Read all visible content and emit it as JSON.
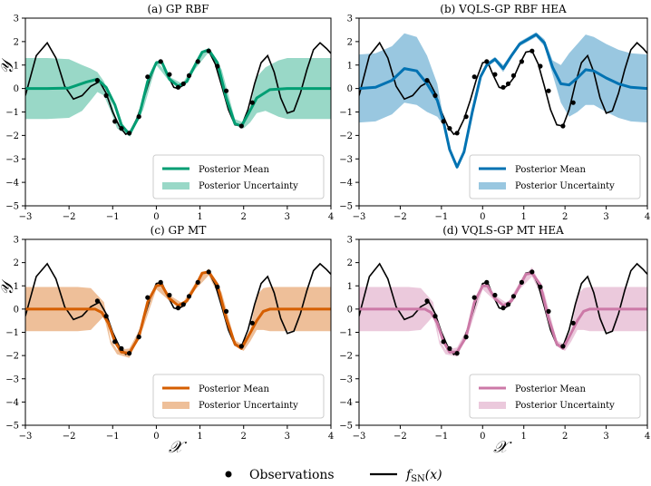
{
  "colors": {
    "gp_rbf": "#009e73",
    "vqls_rbf": "#0072b2",
    "gp_mt": "#d55e00",
    "vqls_mt": "#cc79a7",
    "truth": "#000000"
  },
  "legend": {
    "observations": "Observations",
    "truth": "f",
    "truth_sub": "SN",
    "truth_arg": "(x)"
  },
  "chart_data": [
    {
      "type": "line",
      "title": "(a) GP RBF",
      "color_key": "gp_rbf",
      "xlabel": "",
      "ylabel": "𝒴",
      "xlim": [
        -3,
        4
      ],
      "ylim": [
        -5,
        3
      ],
      "xticks": [
        "−3",
        "−2",
        "−1",
        "0",
        "1",
        "2",
        "3",
        "4"
      ],
      "yticks": [
        "3",
        "2",
        "1",
        "0",
        "−1",
        "−2",
        "−3",
        "−4",
        "−5"
      ],
      "legend": [
        "Posterior Mean",
        "Posterior Uncertainty"
      ],
      "series": [
        {
          "name": "Posterior Mean",
          "x": [
            -3,
            -2.5,
            -2,
            -1.6,
            -1.35,
            -1.15,
            -0.95,
            -0.8,
            -0.62,
            -0.4,
            -0.2,
            0,
            0.12,
            0.3,
            0.5,
            0.7,
            0.9,
            1.05,
            1.2,
            1.4,
            1.6,
            1.8,
            1.95,
            2.1,
            2.3,
            2.6,
            3,
            3.5,
            4
          ],
          "y": [
            0,
            0,
            0.02,
            0.28,
            0.4,
            0.05,
            -0.7,
            -1.55,
            -1.95,
            -1.2,
            0.3,
            1.1,
            1.15,
            0.4,
            0.1,
            0.3,
            1.05,
            1.55,
            1.65,
            1.1,
            -0.4,
            -1.5,
            -1.6,
            -1.1,
            -0.4,
            -0.05,
            0,
            0,
            0
          ]
        },
        {
          "name": "Posterior Uncertainty",
          "x": [
            -3,
            -2.5,
            -2,
            -1.7,
            -1.5,
            -1.35,
            -1.2,
            -1.05,
            -0.9,
            -0.6,
            -0.3,
            0,
            0.3,
            0.6,
            0.9,
            1.2,
            1.5,
            1.8,
            2.0,
            2.15,
            2.3,
            2.5,
            2.8,
            3,
            3.5,
            4
          ],
          "lower": [
            -1.3,
            -1.3,
            -1.25,
            -0.95,
            -0.5,
            -0.15,
            -0.3,
            -0.95,
            -1.7,
            -2.05,
            -0.9,
            1.0,
            0.3,
            0.05,
            0.85,
            1.55,
            0.5,
            -1.55,
            -1.7,
            -1.45,
            -1.05,
            -0.95,
            -1.2,
            -1.3,
            -1.3,
            -1.3
          ],
          "upper": [
            1.3,
            1.3,
            1.25,
            1.0,
            0.85,
            0.7,
            0.3,
            -0.45,
            -1.4,
            -1.85,
            -0.55,
            1.2,
            0.5,
            0.2,
            1.15,
            1.75,
            0.8,
            -1.3,
            -1.45,
            -0.8,
            0.5,
            0.9,
            1.2,
            1.3,
            1.3,
            1.3
          ]
        }
      ]
    },
    {
      "type": "line",
      "title": "(b) VQLS-GP RBF HEA",
      "color_key": "vqls_rbf",
      "xlabel": "",
      "ylabel": "",
      "xlim": [
        -3,
        4
      ],
      "ylim": [
        -5,
        3
      ],
      "xticks": [
        "−3",
        "−2",
        "−1",
        "0",
        "1",
        "2",
        "3",
        "4"
      ],
      "yticks": [
        "3",
        "2",
        "1",
        "0",
        "−1",
        "−2",
        "−3",
        "−4",
        "−5"
      ],
      "legend": [
        "Posterior Mean",
        "Posterior Uncertainty"
      ],
      "series": [
        {
          "name": "Posterior Mean",
          "x": [
            -3,
            -2.6,
            -2.2,
            -1.9,
            -1.6,
            -1.35,
            -1.1,
            -0.95,
            -0.8,
            -0.62,
            -0.45,
            -0.25,
            -0.05,
            0.1,
            0.3,
            0.5,
            0.7,
            0.9,
            1.1,
            1.3,
            1.5,
            1.7,
            1.9,
            2.1,
            2.3,
            2.5,
            2.7,
            3,
            3.3,
            3.6,
            4
          ],
          "y": [
            0,
            0.05,
            0.35,
            0.85,
            0.75,
            0.2,
            -0.5,
            -1.4,
            -2.6,
            -3.35,
            -2.7,
            -1.0,
            0.5,
            1.0,
            1.25,
            0.85,
            1.4,
            1.9,
            2.1,
            2.3,
            1.95,
            0.9,
            0.2,
            0.15,
            0.45,
            0.8,
            0.75,
            0.45,
            0.2,
            0.05,
            0
          ]
        },
        {
          "name": "Posterior Uncertainty",
          "x": [
            -3,
            -2.6,
            -2.2,
            -1.9,
            -1.6,
            -1.35,
            -1.1,
            -0.95,
            -0.8,
            -0.62,
            -0.45,
            -0.25,
            -0.05,
            0.1,
            0.3,
            0.5,
            0.7,
            0.9,
            1.1,
            1.3,
            1.5,
            1.7,
            1.9,
            2.1,
            2.3,
            2.5,
            2.7,
            3,
            3.3,
            3.6,
            4
          ],
          "lower": [
            -1.45,
            -1.4,
            -1.1,
            -0.6,
            -0.7,
            -1.0,
            -1.2,
            -1.55,
            -2.7,
            -3.4,
            -2.8,
            -1.1,
            0.4,
            0.9,
            1.15,
            0.7,
            1.3,
            1.8,
            2.0,
            2.2,
            1.8,
            0.6,
            -0.6,
            -1.2,
            -1.0,
            -0.7,
            -0.7,
            -1.0,
            -1.25,
            -1.4,
            -1.45
          ],
          "upper": [
            1.45,
            1.5,
            1.8,
            2.35,
            2.2,
            1.4,
            0.2,
            -1.25,
            -2.5,
            -3.3,
            -2.6,
            -0.9,
            0.6,
            1.1,
            1.35,
            1.0,
            1.5,
            2.0,
            2.2,
            2.4,
            2.1,
            1.2,
            1.0,
            1.5,
            1.9,
            2.3,
            2.2,
            1.9,
            1.65,
            1.5,
            1.45
          ]
        }
      ]
    },
    {
      "type": "line",
      "title": "(c) GP MT",
      "color_key": "gp_mt",
      "xlabel": "𝒳",
      "ylabel": "𝒴",
      "xlim": [
        -3,
        4
      ],
      "ylim": [
        -5,
        3
      ],
      "xticks": [
        "−3",
        "−2",
        "−1",
        "0",
        "1",
        "2",
        "3",
        "4"
      ],
      "yticks": [
        "3",
        "2",
        "1",
        "0",
        "−1",
        "−2",
        "−3",
        "−4",
        "−5"
      ],
      "legend": [
        "Posterior Mean",
        "Posterior Uncertainty"
      ],
      "series": [
        {
          "name": "Posterior Mean",
          "x": [
            -3,
            -2.5,
            -1.8,
            -1.4,
            -1.25,
            -1.1,
            -0.95,
            -0.8,
            -0.62,
            -0.4,
            -0.2,
            0,
            0.12,
            0.3,
            0.5,
            0.7,
            0.9,
            1.05,
            1.2,
            1.4,
            1.6,
            1.8,
            1.95,
            2.1,
            2.3,
            2.45,
            2.6,
            3,
            3.5,
            4
          ],
          "y": [
            0,
            0,
            0,
            0,
            -0.15,
            -0.6,
            -1.4,
            -1.85,
            -1.9,
            -1.2,
            0.3,
            1.0,
            1.05,
            0.45,
            0.15,
            0.35,
            1.0,
            1.55,
            1.6,
            1.05,
            -0.4,
            -1.5,
            -1.7,
            -1.2,
            -0.5,
            -0.1,
            0,
            0,
            0,
            0
          ]
        },
        {
          "name": "Posterior Uncertainty",
          "x": [
            -3,
            -2.5,
            -1.8,
            -1.5,
            -1.35,
            -1.2,
            -1.05,
            -0.9,
            -0.62,
            -0.3,
            0,
            0.3,
            0.6,
            0.9,
            1.2,
            1.5,
            1.8,
            2.0,
            2.15,
            2.3,
            2.45,
            2.6,
            3,
            3.5,
            4
          ],
          "lower": [
            -0.95,
            -0.95,
            -0.95,
            -0.9,
            -0.6,
            -0.3,
            -1.5,
            -1.95,
            -2.1,
            -0.8,
            0.85,
            0.35,
            0.05,
            0.85,
            1.45,
            0.3,
            -1.6,
            -1.8,
            -1.4,
            -0.9,
            -0.9,
            -0.95,
            -0.95,
            -0.95,
            -0.95
          ],
          "upper": [
            0.95,
            0.95,
            0.95,
            0.9,
            0.6,
            0.3,
            -1.3,
            -1.75,
            -1.7,
            -0.6,
            1.15,
            0.6,
            0.25,
            1.15,
            1.75,
            0.7,
            -1.35,
            -1.55,
            -0.9,
            0.6,
            0.9,
            0.95,
            0.95,
            0.95,
            0.95
          ]
        }
      ]
    },
    {
      "type": "line",
      "title": "(d) VQLS-GP MT HEA",
      "color_key": "vqls_mt",
      "xlabel": "𝒳",
      "ylabel": "",
      "xlim": [
        -3,
        4
      ],
      "ylim": [
        -5,
        3
      ],
      "xticks": [
        "−3",
        "−2",
        "−1",
        "0",
        "1",
        "2",
        "3",
        "4"
      ],
      "yticks": [
        "3",
        "2",
        "1",
        "0",
        "−1",
        "−2",
        "−3",
        "−4",
        "−5"
      ],
      "legend": [
        "Posterior Mean",
        "Posterior Uncertainty"
      ],
      "series": [
        {
          "name": "Posterior Mean",
          "x": [
            -3,
            -2.5,
            -1.8,
            -1.4,
            -1.25,
            -1.1,
            -0.95,
            -0.8,
            -0.62,
            -0.4,
            -0.2,
            0,
            0.12,
            0.3,
            0.5,
            0.7,
            0.9,
            1.05,
            1.2,
            1.4,
            1.6,
            1.8,
            1.95,
            2.1,
            2.3,
            2.45,
            2.6,
            3,
            3.5,
            4
          ],
          "y": [
            0,
            0,
            0,
            0,
            -0.15,
            -0.6,
            -1.4,
            -1.85,
            -1.85,
            -1.2,
            0.3,
            1.0,
            1.0,
            0.45,
            0.15,
            0.35,
            1.0,
            1.5,
            1.55,
            1.05,
            -0.4,
            -1.5,
            -1.7,
            -1.2,
            -0.5,
            -0.1,
            0,
            0,
            0,
            0
          ]
        },
        {
          "name": "Posterior Uncertainty",
          "x": [
            -3,
            -2.5,
            -1.8,
            -1.5,
            -1.35,
            -1.2,
            -1.05,
            -0.9,
            -0.62,
            -0.3,
            0,
            0.3,
            0.6,
            0.9,
            1.2,
            1.5,
            1.8,
            2.0,
            2.15,
            2.3,
            2.45,
            2.6,
            3,
            3.5,
            4
          ],
          "lower": [
            -0.95,
            -0.95,
            -0.95,
            -0.9,
            -0.6,
            -0.3,
            -1.5,
            -1.95,
            -2.05,
            -0.8,
            0.85,
            0.35,
            0.05,
            0.85,
            1.4,
            0.3,
            -1.6,
            -1.8,
            -1.4,
            -0.9,
            -0.9,
            -0.95,
            -0.95,
            -0.95,
            -0.95
          ],
          "upper": [
            0.95,
            0.95,
            0.95,
            0.9,
            0.6,
            0.3,
            -1.3,
            -1.75,
            -1.65,
            -0.6,
            1.15,
            0.6,
            0.25,
            1.15,
            1.8,
            0.7,
            -1.35,
            -1.55,
            -0.9,
            0.6,
            0.9,
            0.95,
            0.95,
            0.95,
            0.95
          ]
        }
      ]
    }
  ],
  "truth_function": {
    "name": "f_SN(x)",
    "x": [
      -3,
      -2.75,
      -2.5,
      -2.3,
      -2.1,
      -1.9,
      -1.7,
      -1.5,
      -1.3,
      -1.15,
      -1.0,
      -0.85,
      -0.7,
      -0.6,
      -0.45,
      -0.3,
      -0.15,
      0,
      0.12,
      0.25,
      0.4,
      0.5,
      0.62,
      0.75,
      0.9,
      1.05,
      1.2,
      1.35,
      1.5,
      1.65,
      1.8,
      1.95,
      2.1,
      2.25,
      2.4,
      2.55,
      2.7,
      2.85,
      3.0,
      3.15,
      3.3,
      3.45,
      3.6,
      3.75,
      3.9,
      4
    ],
    "y": [
      -0.3,
      1.4,
      1.95,
      1.3,
      0.1,
      -0.45,
      -0.3,
      0.1,
      0.3,
      -0.2,
      -1.0,
      -1.6,
      -1.95,
      -1.85,
      -1.3,
      -0.5,
      0.4,
      1.1,
      1.15,
      0.6,
      0.05,
      0.0,
      0.15,
      0.45,
      1.05,
      1.55,
      1.6,
      1.05,
      0.1,
      -0.9,
      -1.55,
      -1.6,
      -0.9,
      0.2,
      1.1,
      1.4,
      0.7,
      -0.4,
      -1.05,
      -0.95,
      -0.2,
      0.8,
      1.65,
      1.95,
      1.7,
      1.5
    ]
  },
  "observations": {
    "x": [
      -1.35,
      -1.15,
      -0.95,
      -0.8,
      -0.62,
      -0.4,
      -0.2,
      0.1,
      0.3,
      0.5,
      0.62,
      0.75,
      0.95,
      1.2,
      1.4,
      1.6,
      1.95,
      2.2
    ],
    "y": [
      0.35,
      -0.3,
      -1.4,
      -1.7,
      -1.9,
      -1.2,
      0.5,
      1.15,
      0.6,
      0.05,
      0.2,
      0.55,
      1.15,
      1.6,
      0.95,
      -0.1,
      -1.6,
      -0.6
    ]
  }
}
